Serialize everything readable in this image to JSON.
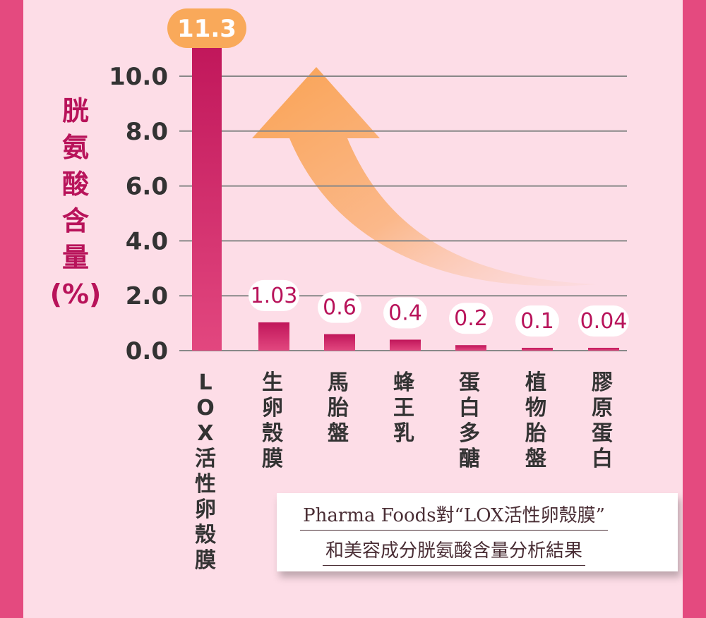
{
  "chart_data": {
    "type": "bar",
    "ylabel": "胱氨酸含量(%)",
    "ylabel_chars": [
      "胱",
      "氨",
      "酸",
      "含",
      "量",
      "(%)"
    ],
    "ylim": [
      0,
      10
    ],
    "yticks": [
      "0.0",
      "2.0",
      "4.0",
      "6.0",
      "8.0",
      "10.0"
    ],
    "grid": true,
    "categories": [
      "LOX活性卵殼膜",
      "生卵殼膜",
      "馬胎盤",
      "蜂王乳",
      "蛋白多醣",
      "植物胎盤",
      "膠原蛋白"
    ],
    "category_chars": [
      [
        "L",
        "O",
        "X",
        "活",
        "性",
        "卵",
        "殼",
        "膜"
      ],
      [
        "生",
        "卵",
        "殼",
        "膜"
      ],
      [
        "馬",
        "胎",
        "盤"
      ],
      [
        "蜂",
        "王",
        "乳"
      ],
      [
        "蛋",
        "白",
        "多",
        "醣"
      ],
      [
        "植",
        "物",
        "胎",
        "盤"
      ],
      [
        "膠",
        "原",
        "蛋",
        "白"
      ]
    ],
    "values": [
      11.3,
      1.03,
      0.6,
      0.4,
      0.2,
      0.1,
      0.04
    ],
    "value_labels": [
      "11.3",
      "1.03",
      "0.6",
      "0.4",
      "0.2",
      "0.1",
      "0.04"
    ],
    "annotation": "upward curved arrow"
  },
  "caption": {
    "line1": "Pharma Foods對“LOX活性卵殼膜”",
    "line2": "和美容成分胱氨酸含量分析結果"
  },
  "colors": {
    "frame": "#e44a7f",
    "background": "#fddde7",
    "bar_top": "#c0165a",
    "bar_bottom": "#e2477f",
    "highlight": "#f9a95a",
    "label_text": "#b8135a",
    "axis_text": "#333333",
    "grid": "#888888"
  }
}
